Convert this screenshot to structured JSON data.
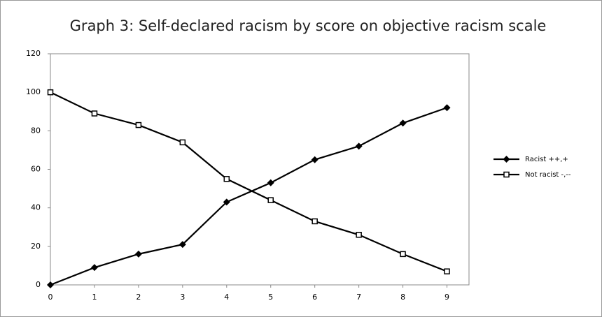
{
  "chart_data": {
    "type": "line",
    "title": "Graph 3: Self-declared racism by score on objective racism scale",
    "x": [
      0,
      1,
      2,
      3,
      4,
      5,
      6,
      7,
      8,
      9
    ],
    "xlim": [
      0,
      9.5
    ],
    "xticks": [
      0,
      1,
      2,
      3,
      4,
      5,
      6,
      7,
      8,
      9
    ],
    "ylim": [
      0,
      120
    ],
    "yticks": [
      0,
      20,
      40,
      60,
      80,
      100,
      120
    ],
    "legend": "right",
    "series": [
      {
        "name": "Racist ++,+",
        "color": "#000000",
        "marker": "diamond",
        "values": [
          0,
          9,
          16,
          21,
          43,
          53,
          65,
          72,
          84,
          92
        ]
      },
      {
        "name": "Not racist -,--",
        "color": "#000000",
        "marker": "square",
        "values": [
          100,
          89,
          83,
          74,
          55,
          44,
          33,
          26,
          16,
          7
        ]
      }
    ]
  }
}
